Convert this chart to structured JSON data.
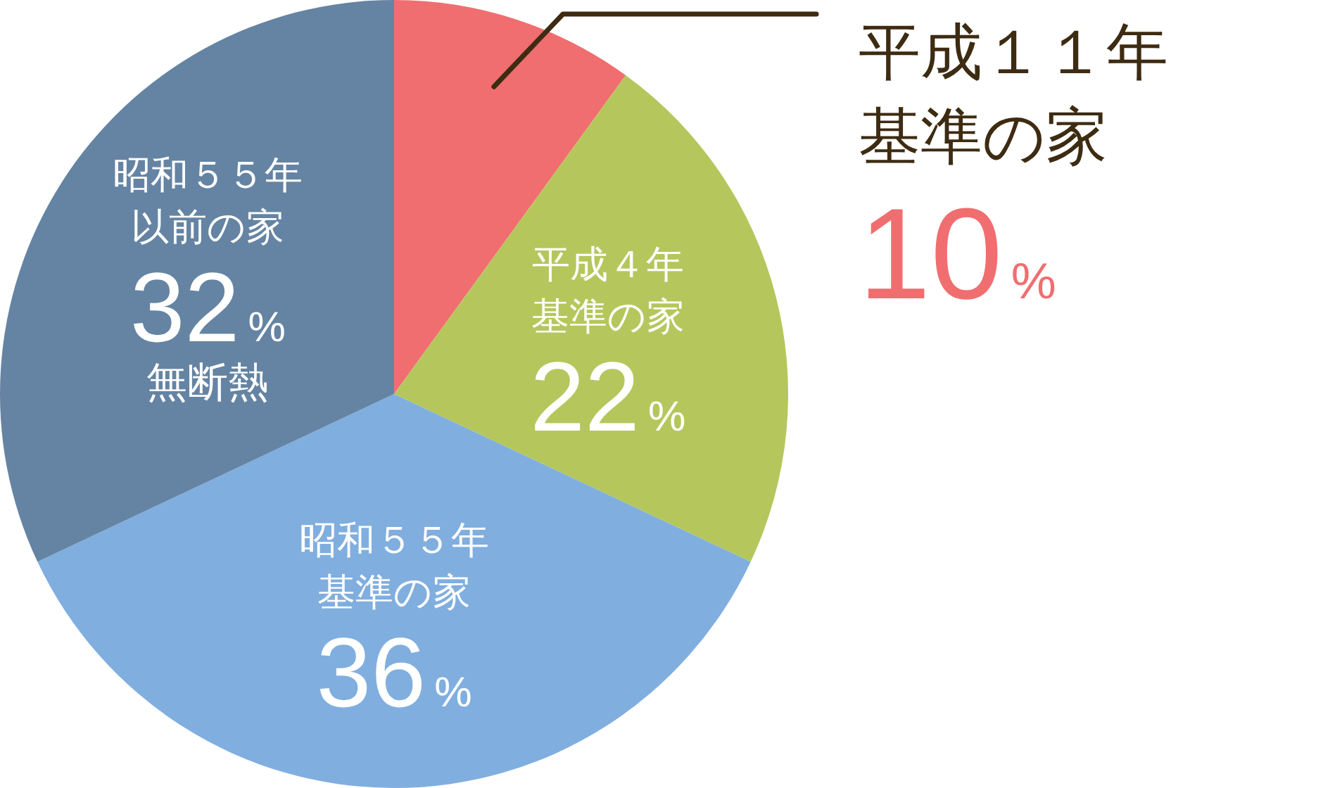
{
  "chart_data": {
    "type": "pie",
    "categories": [
      "平成１１年基準の家",
      "平成４年基準の家",
      "昭和５５年基準の家",
      "昭和５５年以前の家"
    ],
    "values": [
      10,
      22,
      36,
      32
    ],
    "colors": [
      "#f06e70",
      "#b5c75c",
      "#80aedf",
      "#6584a3"
    ],
    "value_labels": [
      "10%",
      "22%",
      "36%",
      "32%"
    ],
    "annotations": [
      {
        "text": "無断熱",
        "x": "昭和５５年以前の家"
      }
    ]
  }
}
